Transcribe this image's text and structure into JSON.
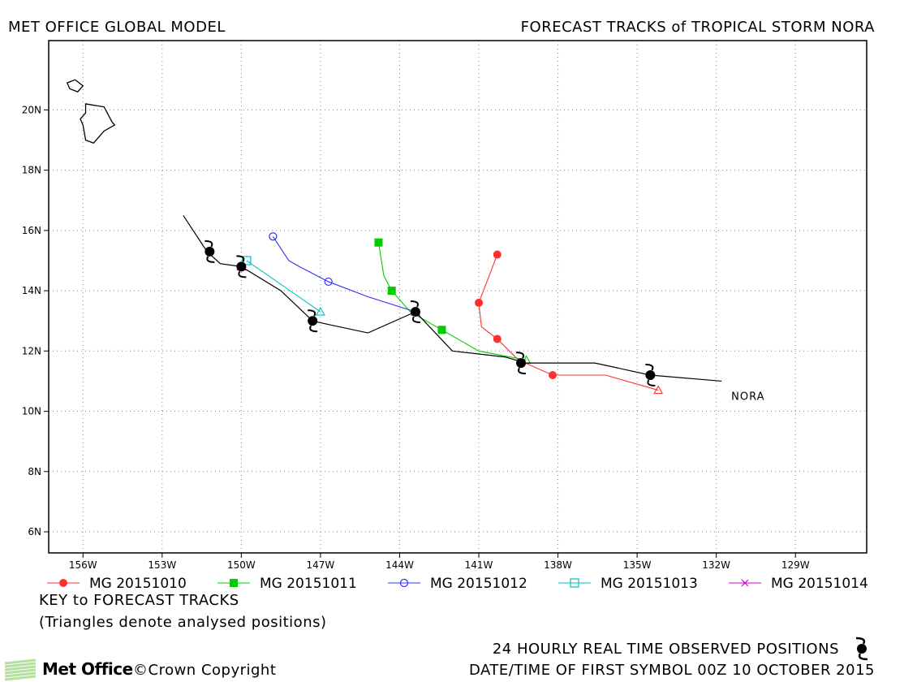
{
  "header": {
    "left_title": "MET OFFICE GLOBAL MODEL",
    "right_title": "FORECAST TRACKS of TROPICAL STORM NORA"
  },
  "footer": {
    "key_title": "KEY to FORECAST TRACKS",
    "key_note": "(Triangles denote analysed positions)",
    "observed_note": "24 HOURLY REAL TIME OBSERVED POSITIONS",
    "first_symbol": "DATE/TIME OF FIRST SYMBOL 00Z 10 OCTOBER 2015",
    "copyright": "©Crown Copyright",
    "logo_text": "Met Office"
  },
  "chart_data": {
    "type": "line",
    "storm_label": "NORA",
    "xlim": [
      -157.3,
      -126.3
    ],
    "ylim": [
      5.3,
      22.3
    ],
    "x_ticks": [
      -156,
      -153,
      -150,
      -147,
      -144,
      -141,
      -138,
      -135,
      -132,
      -129
    ],
    "x_tick_labels": [
      "156W",
      "153W",
      "150W",
      "147W",
      "144W",
      "141W",
      "138W",
      "135W",
      "132W",
      "129W"
    ],
    "y_ticks": [
      6,
      8,
      10,
      12,
      14,
      16,
      18,
      20
    ],
    "y_tick_labels": [
      "6N",
      "8N",
      "10N",
      "12N",
      "14N",
      "16N",
      "18N",
      "20N"
    ],
    "grid": true,
    "observed_track": {
      "color": "#000000",
      "points": [
        [
          -131.8,
          11.0
        ],
        [
          -134.5,
          11.2
        ],
        [
          -136.6,
          11.6
        ],
        [
          -139.2,
          11.6
        ],
        [
          -140.0,
          11.8
        ],
        [
          -141.0,
          11.9
        ],
        [
          -142.0,
          12.0
        ],
        [
          -143.4,
          13.3
        ],
        [
          -145.2,
          12.6
        ],
        [
          -146.8,
          12.9
        ],
        [
          -147.3,
          13.0
        ],
        [
          -148.5,
          14.0
        ],
        [
          -150.0,
          14.8
        ],
        [
          -150.8,
          14.9
        ],
        [
          -151.3,
          15.3
        ],
        [
          -152.2,
          16.5
        ]
      ],
      "symbols": [
        [
          -134.5,
          11.2
        ],
        [
          -139.4,
          11.6
        ],
        [
          -143.4,
          13.3
        ],
        [
          -147.3,
          13.0
        ],
        [
          -150.0,
          14.8
        ],
        [
          -151.2,
          15.3
        ]
      ]
    },
    "series": [
      {
        "name": "MG 20151010",
        "color": "#ff3030",
        "marker": "filled-circle",
        "points": [
          [
            -134.2,
            10.7
          ],
          [
            -136.2,
            11.2
          ],
          [
            -138.2,
            11.2
          ],
          [
            -139.5,
            11.7
          ],
          [
            -140.3,
            12.4
          ],
          [
            -140.9,
            12.8
          ],
          [
            -141.0,
            13.6
          ],
          [
            -140.3,
            15.2
          ]
        ],
        "markers": [
          [
            -138.2,
            11.2
          ],
          [
            -140.3,
            12.4
          ],
          [
            -141.0,
            13.6
          ],
          [
            -140.3,
            15.2
          ]
        ],
        "analysed": [
          -134.2,
          10.7
        ]
      },
      {
        "name": "MG 20151011",
        "color": "#00cc00",
        "marker": "filled-square",
        "points": [
          [
            -139.2,
            11.7
          ],
          [
            -141.0,
            12.0
          ],
          [
            -142.4,
            12.7
          ],
          [
            -143.6,
            13.3
          ],
          [
            -144.3,
            14.0
          ],
          [
            -144.6,
            14.5
          ],
          [
            -144.8,
            15.6
          ]
        ],
        "markers": [
          [
            -142.4,
            12.7
          ],
          [
            -144.3,
            14.0
          ],
          [
            -144.8,
            15.6
          ]
        ],
        "analysed": [
          -139.2,
          11.7
        ]
      },
      {
        "name": "MG 20151012",
        "color": "#3030ff",
        "marker": "open-circle",
        "points": [
          [
            -143.4,
            13.3
          ],
          [
            -145.2,
            13.8
          ],
          [
            -146.7,
            14.3
          ],
          [
            -147.8,
            14.8
          ],
          [
            -148.2,
            15.0
          ],
          [
            -148.8,
            15.8
          ]
        ],
        "markers": [
          [
            -146.7,
            14.3
          ],
          [
            -148.8,
            15.8
          ]
        ],
        "analysed": [
          -143.4,
          13.3
        ]
      },
      {
        "name": "MG 20151013",
        "color": "#00c0c0",
        "marker": "open-square",
        "points": [
          [
            -147.0,
            13.3
          ],
          [
            -149.8,
            15.0
          ]
        ],
        "markers": [
          [
            -149.8,
            15.0
          ]
        ],
        "analysed": [
          -147.0,
          13.3
        ]
      },
      {
        "name": "MG 20151014",
        "color": "#cc00cc",
        "marker": "x",
        "points": [
          [
            -150.0,
            14.8
          ],
          [
            -150.1,
            14.7
          ]
        ],
        "markers": [],
        "analysed": [
          -150.0,
          14.8
        ]
      }
    ],
    "land": [
      {
        "name": "hawaii-big-island",
        "points": [
          [
            -155.9,
            20.2
          ],
          [
            -155.2,
            20.1
          ],
          [
            -154.9,
            19.6
          ],
          [
            -154.8,
            19.5
          ],
          [
            -155.2,
            19.3
          ],
          [
            -155.6,
            18.9
          ],
          [
            -155.9,
            19.0
          ],
          [
            -156.0,
            19.5
          ],
          [
            -156.1,
            19.7
          ],
          [
            -155.9,
            19.9
          ],
          [
            -155.9,
            20.2
          ]
        ]
      },
      {
        "name": "maui",
        "points": [
          [
            -156.6,
            20.9
          ],
          [
            -156.3,
            21.0
          ],
          [
            -156.0,
            20.8
          ],
          [
            -156.2,
            20.6
          ],
          [
            -156.5,
            20.7
          ],
          [
            -156.6,
            20.9
          ]
        ]
      }
    ]
  }
}
